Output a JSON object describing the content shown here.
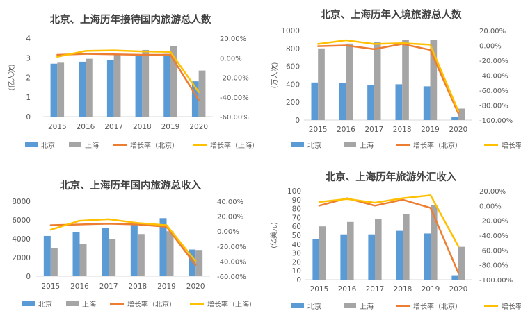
{
  "colors": {
    "bar_bj": "#5B9BD5",
    "bar_sh": "#A5A5A5",
    "line_bj": "#ED7D31",
    "line_sh": "#FFC000"
  },
  "chart_data": [
    {
      "type": "bar",
      "title": "北京、上海历年接待国内旅游总人数",
      "ylabel": "(亿人次)",
      "categories": [
        "2015",
        "2016",
        "2017",
        "2018",
        "2019",
        "2020"
      ],
      "ylim": [
        0,
        4
      ],
      "y_ticks": [
        "0",
        "1",
        "2",
        "3",
        "4"
      ],
      "y2lim": [
        -60,
        20
      ],
      "y2_ticks": [
        "-60.00%",
        "-40.00%",
        "-20.00%",
        "0.00%",
        "20.00%"
      ],
      "series": [
        {
          "name": "北京",
          "kind": "bar",
          "values": [
            2.7,
            2.8,
            2.9,
            3.1,
            3.2,
            1.8
          ]
        },
        {
          "name": "上海",
          "kind": "bar",
          "values": [
            2.75,
            2.95,
            3.2,
            3.4,
            3.6,
            2.35
          ]
        },
        {
          "name": "增长率（北京）",
          "kind": "line",
          "axis": "right",
          "values": [
            3,
            4,
            3.5,
            3,
            3,
            -43
          ]
        },
        {
          "name": "增长率（上海）",
          "kind": "line",
          "axis": "right",
          "values": [
            1,
            7,
            7.5,
            6.5,
            6,
            -35
          ]
        }
      ]
    },
    {
      "type": "bar",
      "title": "北京、上海历年入境旅游总人数",
      "ylabel": "(万人次)",
      "categories": [
        "2015",
        "2016",
        "2017",
        "2018",
        "2019",
        "2020"
      ],
      "ylim": [
        0,
        1000
      ],
      "y_ticks": [
        "0",
        "200",
        "400",
        "600",
        "800",
        "1000"
      ],
      "y2lim": [
        -100,
        20
      ],
      "y2_ticks": [
        "-100.00%",
        "-80.00%",
        "-60.00%",
        "-40.00%",
        "-20.00%",
        "0.00%",
        "20.00%"
      ],
      "series": [
        {
          "name": "北京",
          "kind": "bar",
          "values": [
            420,
            415,
            392,
            400,
            377,
            34
          ]
        },
        {
          "name": "上海",
          "kind": "bar",
          "values": [
            800,
            854,
            873,
            894,
            897,
            128
          ]
        },
        {
          "name": "增长率（北京）",
          "kind": "line",
          "axis": "right",
          "values": [
            -1,
            0,
            -5,
            2,
            -6,
            -91
          ]
        },
        {
          "name": "增长率（上海）",
          "kind": "line",
          "axis": "right",
          "values": [
            2,
            7,
            2,
            3,
            1,
            -88
          ]
        }
      ]
    },
    {
      "type": "bar",
      "title": "北京、上海历年国内旅游总收入",
      "ylabel": "",
      "categories": [
        "2015",
        "2016",
        "2017",
        "2018",
        "2019",
        "2020"
      ],
      "ylim": [
        0,
        8000
      ],
      "y_ticks": [
        "0",
        "2000",
        "4000",
        "6000",
        "8000"
      ],
      "y2lim": [
        -60,
        40
      ],
      "y2_ticks": [
        "-60.00%",
        "-40.00%",
        "-20.00%",
        "0.00%",
        "20.00%",
        "40.00%"
      ],
      "series": [
        {
          "name": "北京",
          "kind": "bar",
          "values": [
            4300,
            4700,
            5150,
            5500,
            6200,
            2850
          ]
        },
        {
          "name": "上海",
          "kind": "bar",
          "values": [
            3000,
            3450,
            4000,
            4500,
            4800,
            2800
          ]
        },
        {
          "name": "增长率（北京）",
          "kind": "line",
          "axis": "right",
          "values": [
            8,
            9,
            10,
            9,
            6,
            -45
          ]
        },
        {
          "name": "增长率（上海）",
          "kind": "line",
          "axis": "right",
          "values": [
            2,
            14,
            16,
            11,
            8,
            -40
          ]
        }
      ]
    },
    {
      "type": "bar",
      "title": "北京、上海历年旅游外汇收入",
      "ylabel": "(亿美元)",
      "categories": [
        "2015",
        "2016",
        "2017",
        "2018",
        "2019",
        "2020"
      ],
      "ylim": [
        0,
        100
      ],
      "y_ticks": [
        "0",
        "10",
        "20",
        "30",
        "40",
        "50",
        "60",
        "70",
        "80",
        "90",
        "100"
      ],
      "y2lim": [
        -100,
        20
      ],
      "y2_ticks": [
        "-100.00%",
        "-80.00%",
        "-60.00%",
        "-40.00%",
        "-20.00%",
        "0.00%",
        "20.00%"
      ],
      "series": [
        {
          "name": "北京",
          "kind": "bar",
          "values": [
            46,
            51,
            51,
            55,
            52,
            5
          ]
        },
        {
          "name": "上海",
          "kind": "bar",
          "values": [
            60,
            65,
            68,
            74,
            84,
            37
          ]
        },
        {
          "name": "增长率（北京）",
          "kind": "line",
          "axis": "right",
          "values": [
            0,
            10,
            0,
            8,
            -3,
            -91
          ]
        },
        {
          "name": "增长率（上海）",
          "kind": "line",
          "axis": "right",
          "values": [
            5,
            9,
            4,
            10,
            14,
            -55
          ]
        }
      ]
    }
  ]
}
